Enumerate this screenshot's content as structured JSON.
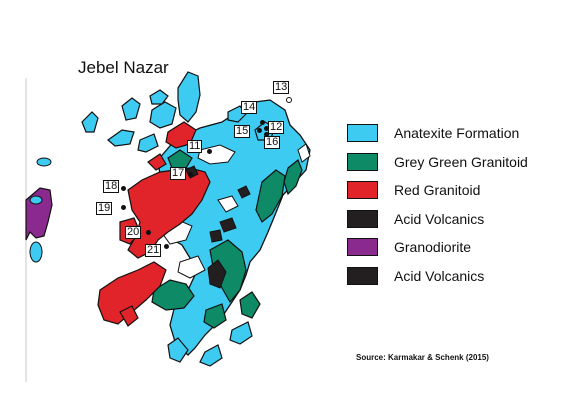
{
  "map": {
    "title": "Jebel Nazar",
    "source": "Source: Karmakar & Schenk (2015)",
    "units": [
      {
        "name": "Anatexite Formation",
        "color": "#3ecbf2"
      },
      {
        "name": "Grey Green Granitoid",
        "color": "#0e8a66"
      },
      {
        "name": "Red Granitoid",
        "color": "#e0242a"
      },
      {
        "name": "Acid Volcanics",
        "color": "#231f20"
      },
      {
        "name": "Granodiorite",
        "color": "#8b2a8e"
      },
      {
        "name": "Acid Volcanics",
        "color": "#231f20"
      }
    ],
    "locations": [
      "13",
      "14",
      "15",
      "12",
      "16",
      "11",
      "17",
      "18",
      "19",
      "20",
      "21"
    ]
  }
}
